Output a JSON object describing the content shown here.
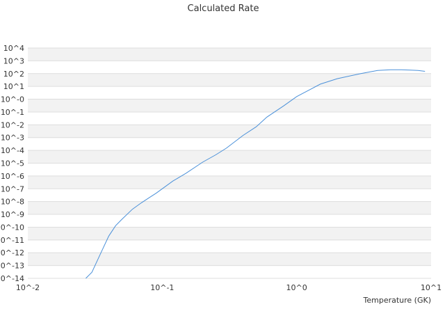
{
  "chart_data": {
    "type": "line",
    "title": "Calculated Rate",
    "xlabel": "Temperature (GK)",
    "ylabel": "",
    "x_scale": "log",
    "y_scale": "log",
    "xlim": [
      0.01,
      10
    ],
    "ylim": [
      1e-14,
      10000
    ],
    "grid": "alternating horizontal bands",
    "x_tick_labels": [
      "10^-2",
      "10^-1",
      "10^0",
      "10^1"
    ],
    "y_tick_labels": [
      "10^-14",
      "10^-13",
      "10^-12",
      "10^-11",
      "10^-10",
      "10^-9",
      "10^-8",
      "10^-7",
      "10^-6",
      "10^-5",
      "10^-4",
      "10^-3",
      "10^-2",
      "10^-1",
      "10^-0",
      "10^1",
      "10^2",
      "10^3",
      "10^4"
    ],
    "series": [
      {
        "color": "#4a90d9",
        "x": [
          0.027,
          0.03,
          0.035,
          0.04,
          0.045,
          0.05,
          0.06,
          0.07,
          0.08,
          0.09,
          0.1,
          0.12,
          0.15,
          0.2,
          0.25,
          0.3,
          0.4,
          0.5,
          0.6,
          0.8,
          1.0,
          1.5,
          2.0,
          3.0,
          4.0,
          5.0,
          6.0,
          7.0,
          8.0,
          9.0
        ],
        "y": [
          1e-14,
          3e-14,
          1e-12,
          2e-11,
          1.3e-10,
          4e-10,
          2.5e-09,
          8e-09,
          2e-08,
          4.5e-08,
          1e-07,
          4e-07,
          1.6e-06,
          1.2e-05,
          4.5e-05,
          0.00015,
          0.0015,
          0.007,
          0.04,
          0.3,
          1.6,
          15,
          40,
          100,
          175,
          200,
          200,
          190,
          175,
          150
        ]
      }
    ]
  }
}
